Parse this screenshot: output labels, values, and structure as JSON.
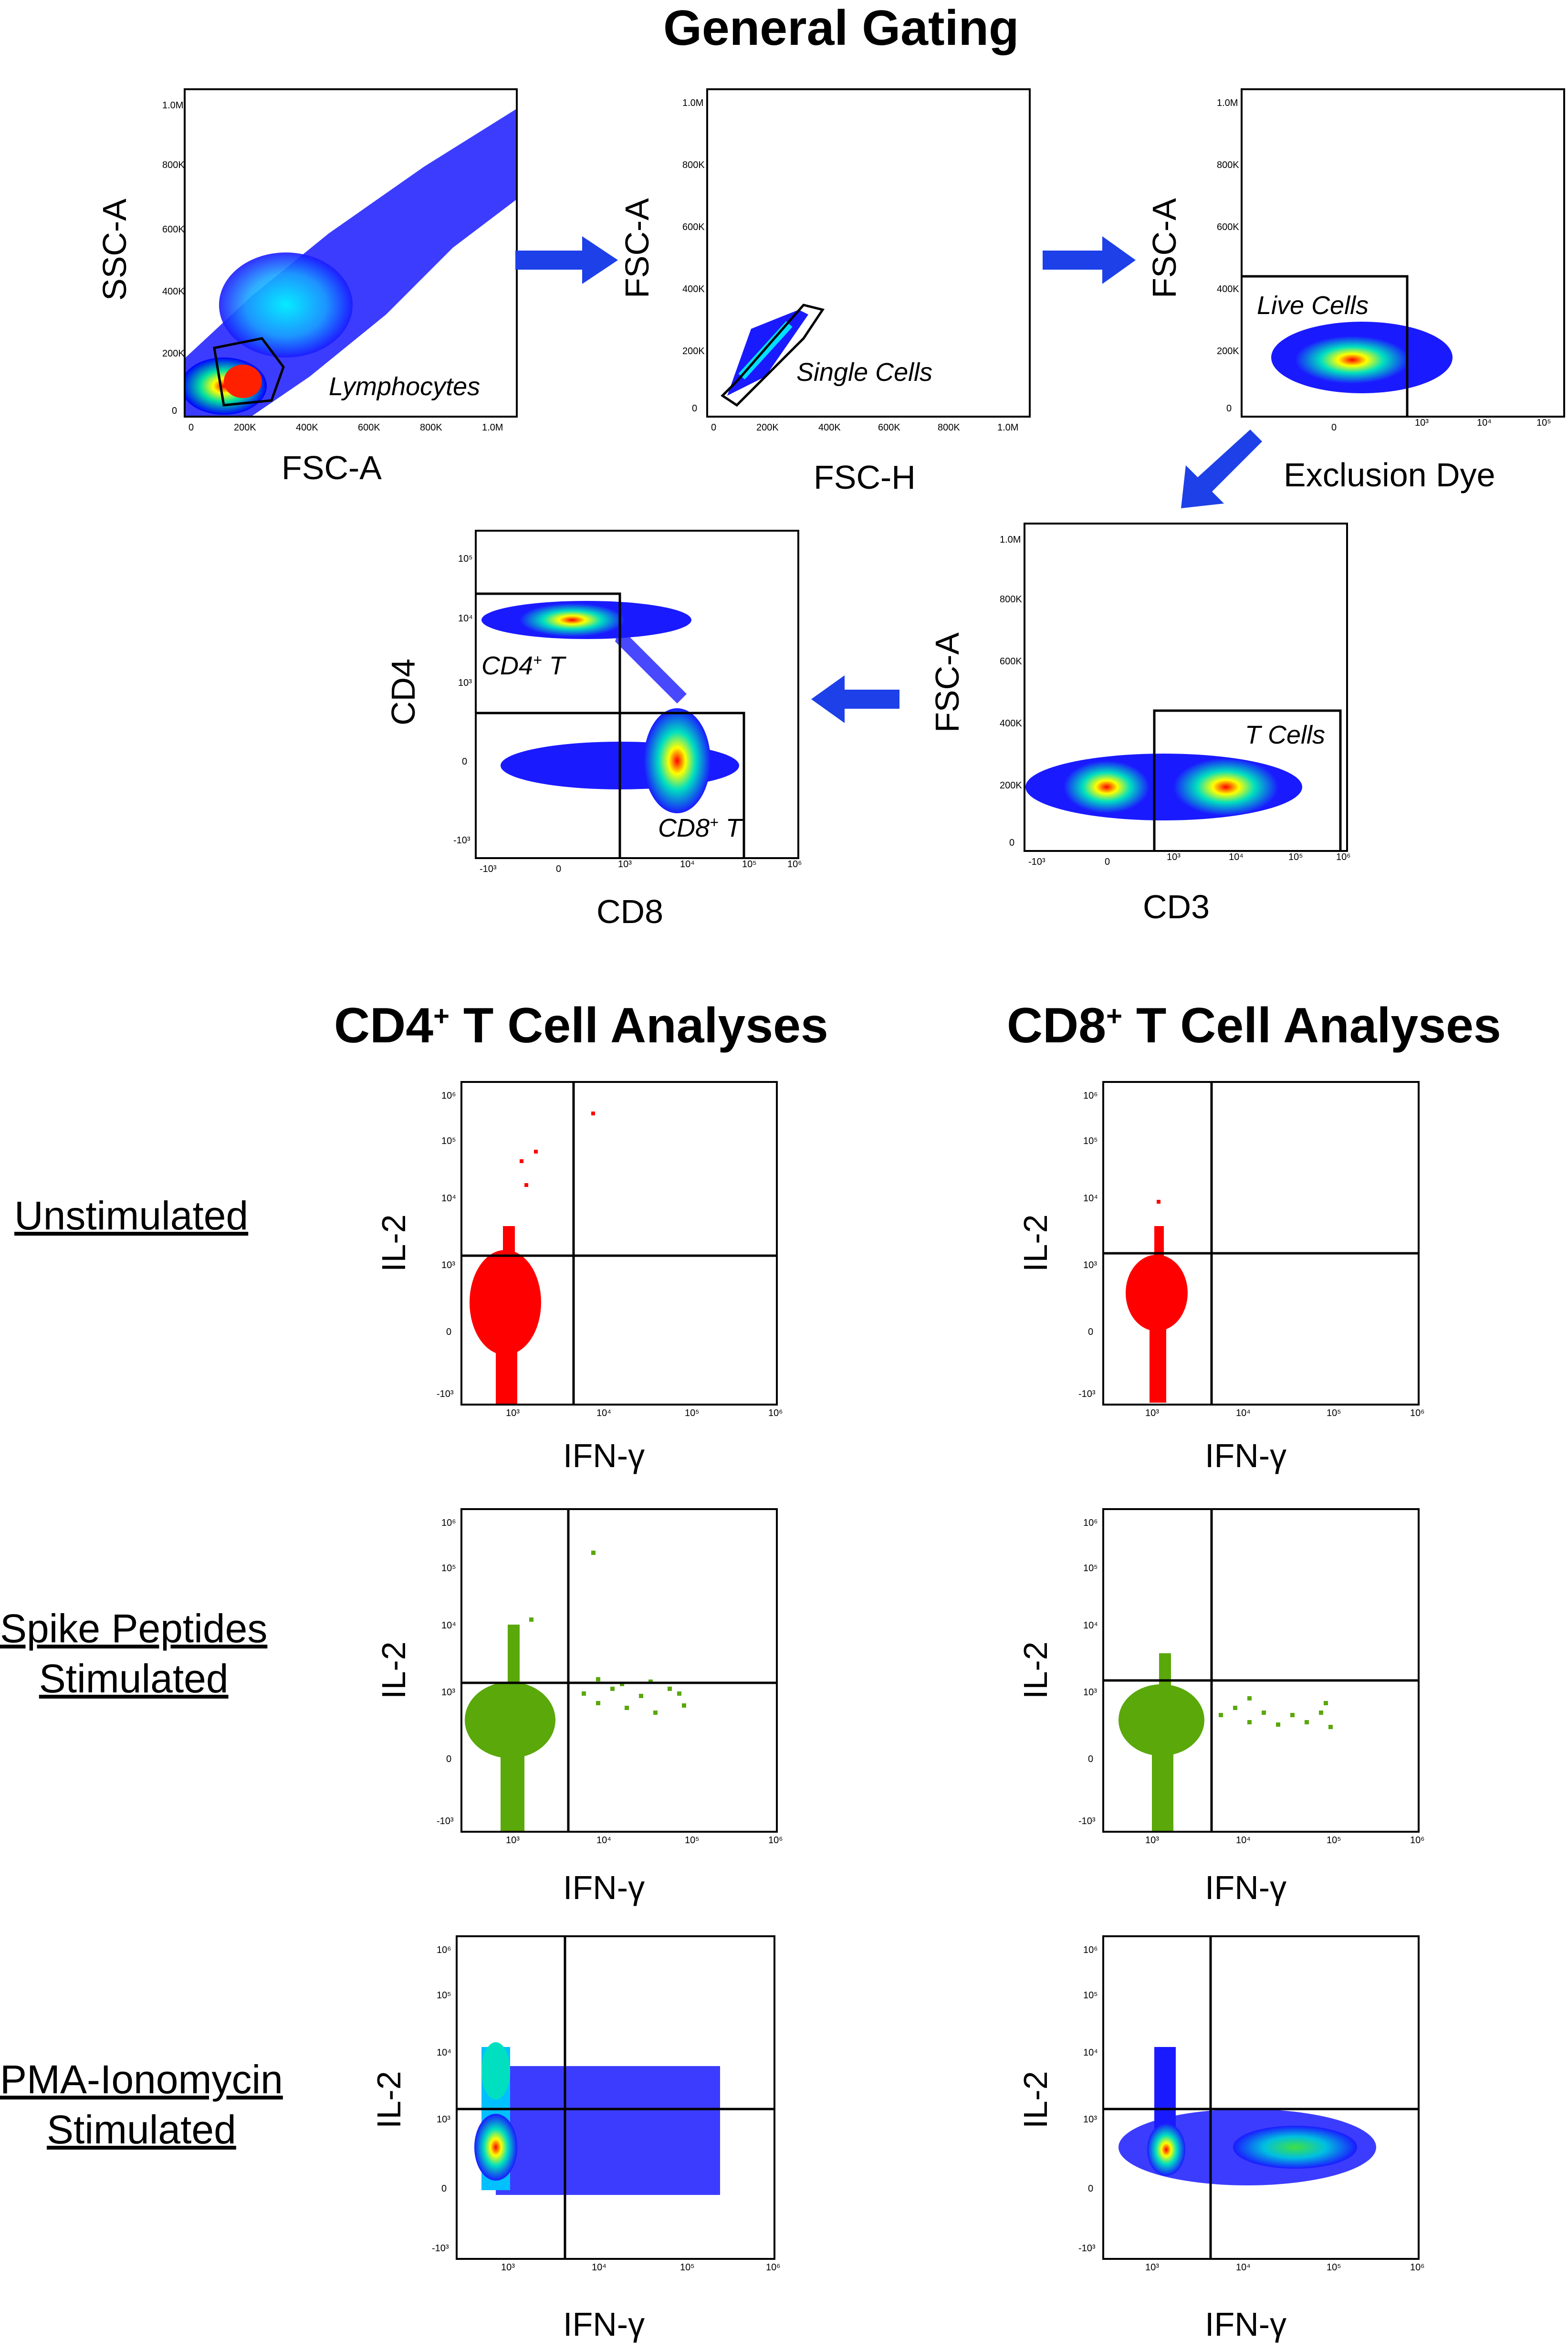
{
  "general_title": "General Gating",
  "cd4_title": {
    "prefix": "CD4",
    "sup": "+",
    "suffix": " T Cell Analyses"
  },
  "cd8_title": {
    "prefix": "CD8",
    "sup": "+",
    "suffix": " T Cell Analyses"
  },
  "rows": {
    "unstim": "Unstimulated",
    "spike_line1": "Spike Peptides",
    "spike_line2": "Stimulated",
    "pma_line1": "PMA-Ionomycin",
    "pma_line2": "Stimulated"
  },
  "plots": {
    "p1": {
      "xlabel": "FSC-A",
      "ylabel": "SSC-A",
      "gate": "Lymphocytes",
      "xticks": [
        "0",
        "200K",
        "400K",
        "600K",
        "800K",
        "1.0M"
      ],
      "yticks": [
        "1.0M",
        "800K",
        "600K",
        "400K",
        "200K",
        "0"
      ]
    },
    "p2": {
      "xlabel": "FSC-H",
      "ylabel": "FSC-A",
      "gate": "Single Cells",
      "xticks": [
        "0",
        "200K",
        "400K",
        "600K",
        "800K",
        "1.0M"
      ],
      "yticks": [
        "1.0M",
        "800K",
        "600K",
        "400K",
        "200K",
        "0"
      ]
    },
    "p3": {
      "xlabel": "Exclusion Dye",
      "ylabel": "FSC-A",
      "gate": "Live Cells",
      "xticks": [
        "0",
        "10³",
        "10⁴",
        "10⁵"
      ],
      "yticks": [
        "1.0M",
        "800K",
        "600K",
        "400K",
        "200K",
        "0"
      ]
    },
    "p4": {
      "xlabel": "CD3",
      "ylabel": "FSC-A",
      "gate": "T Cells",
      "xticks": [
        "-10³",
        "0",
        "10³",
        "10⁴",
        "10⁵",
        "10⁶"
      ],
      "yticks": [
        "1.0M",
        "800K",
        "600K",
        "400K",
        "200K",
        "0"
      ]
    },
    "p5": {
      "xlabel": "CD8",
      "ylabel": "CD4",
      "gate_cd4": {
        "prefix": "CD4",
        "sup": "+",
        "suffix": " T"
      },
      "gate_cd8": {
        "prefix": "CD8",
        "sup": "+",
        "suffix": " T"
      },
      "xticks": [
        "-10³",
        "0",
        "10³",
        "10⁴",
        "10⁵",
        "10⁶"
      ],
      "yticks": [
        "10⁵",
        "10⁴",
        "10³",
        "0",
        "-10³"
      ]
    }
  },
  "analysis": {
    "xlabel": "IFN-γ",
    "ylabel": "IL-2",
    "xticks": [
      "10³",
      "10⁴",
      "10⁵",
      "10⁶"
    ],
    "yticks": [
      "10⁶",
      "10⁵",
      "10⁴",
      "10³",
      "0",
      "-10³"
    ]
  },
  "colors": {
    "arrow": "#1d40e8",
    "unstim": "#ff0000",
    "spike": "#5aa80a",
    "density": "#1a1aff"
  }
}
